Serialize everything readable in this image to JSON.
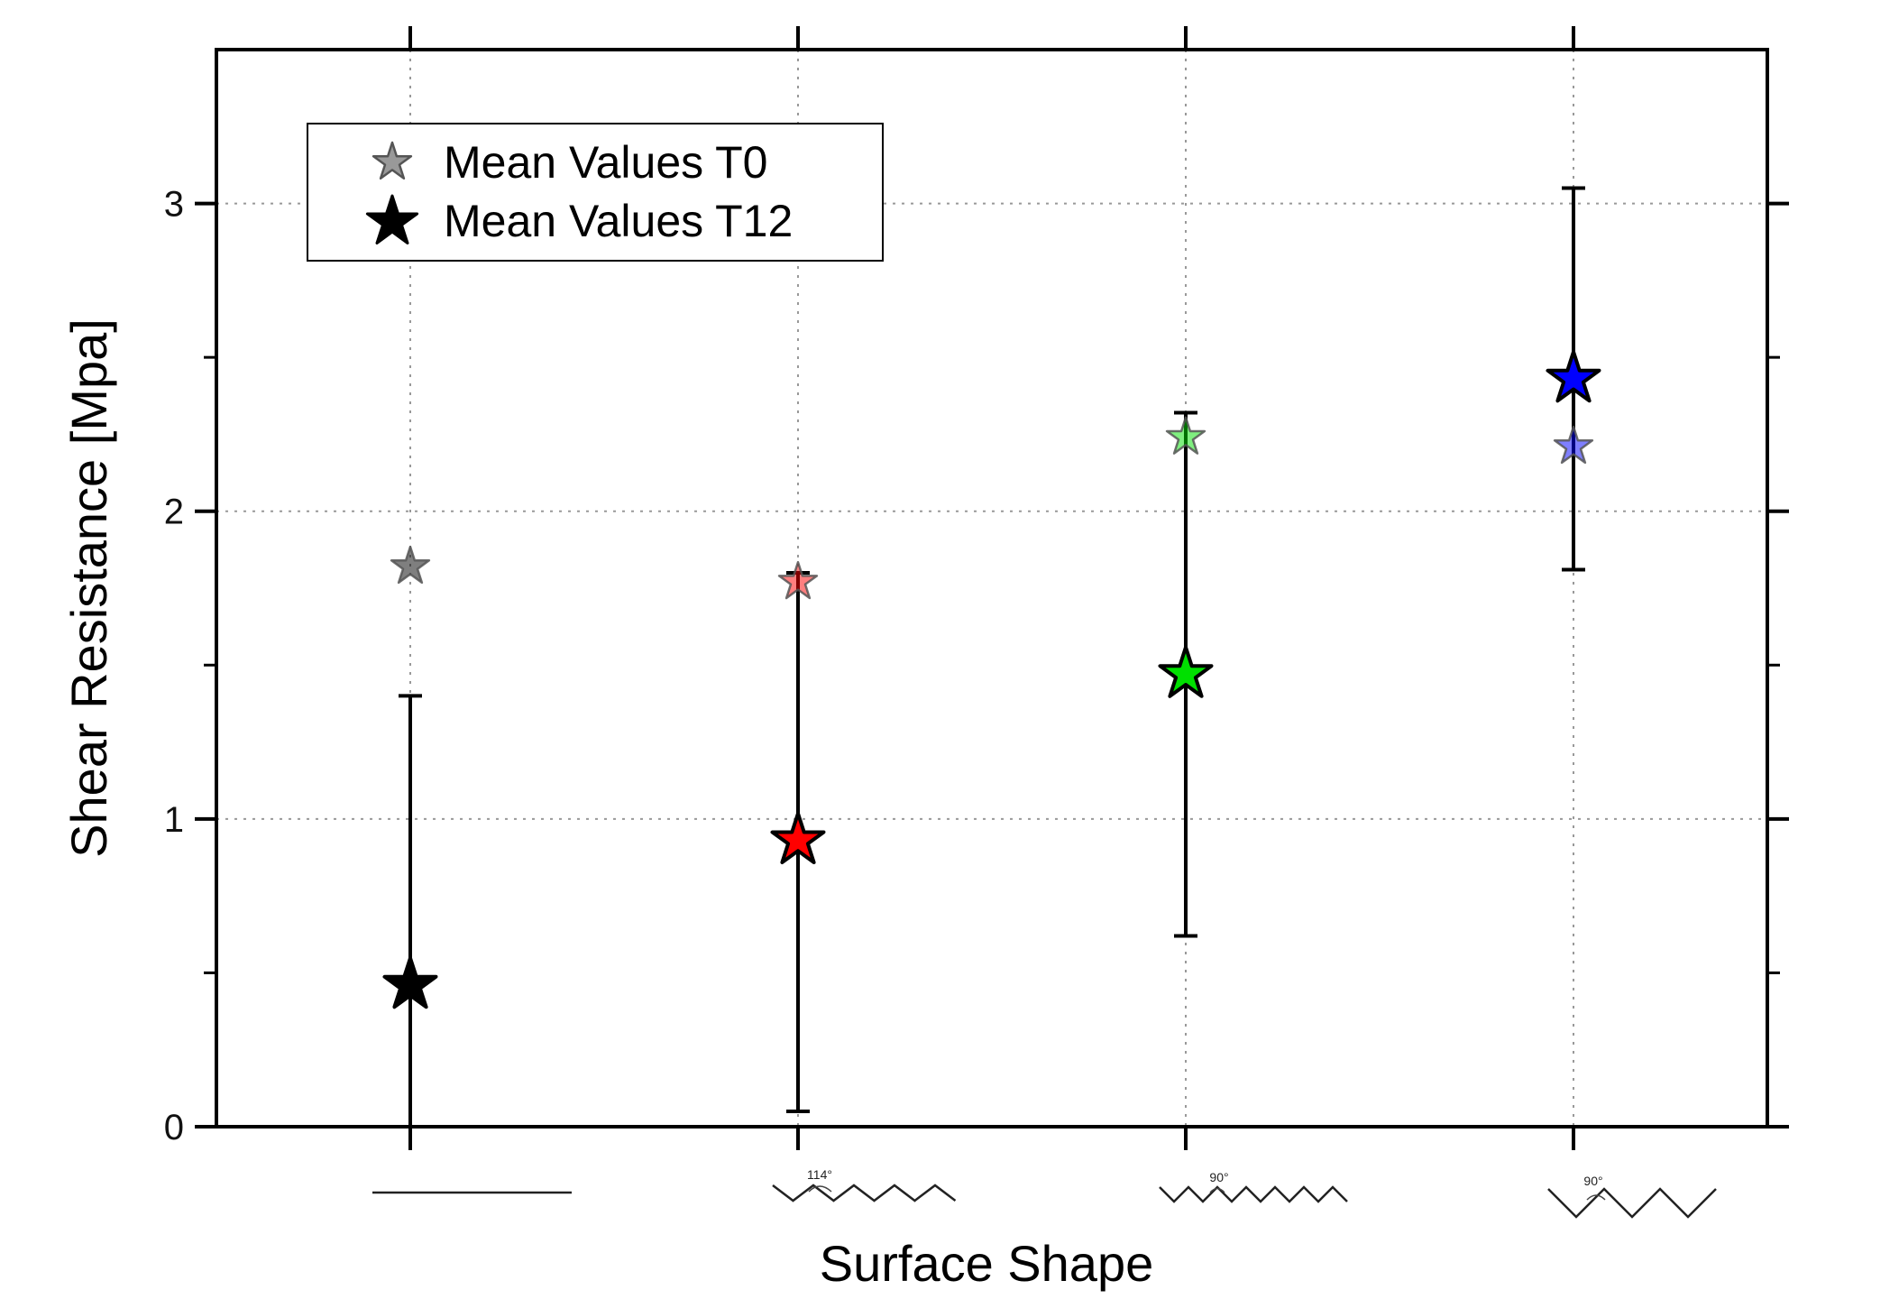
{
  "chart_data": {
    "type": "scatter",
    "title": "",
    "xlabel": "Surface Shape",
    "ylabel": "Shear Resistance [Mpa]",
    "ylim": [
      0,
      3.5
    ],
    "yticks": [
      "0",
      "1",
      "2",
      "3"
    ],
    "grid": true,
    "categories": [
      "flat",
      "zigzag 114°",
      "zigzag 90° fine",
      "zigzag 90° coarse"
    ],
    "category_labels": [
      "",
      "114°",
      "90°",
      "90°"
    ],
    "category_colors": [
      "#000000",
      "#ff0000",
      "#00e000",
      "#0000ff"
    ],
    "legend": {
      "placement": "top-left",
      "entries": [
        "Mean Values T0",
        "Mean Values T12"
      ]
    },
    "series": [
      {
        "name": "Mean Values T0",
        "values": [
          1.82,
          1.77,
          2.24,
          2.21
        ],
        "error_low": [
          null,
          0.05,
          0.62,
          1.81
        ],
        "error_high": [
          null,
          1.8,
          2.32,
          3.05
        ]
      },
      {
        "name": "Mean Values T12",
        "values": [
          0.46,
          0.93,
          1.47,
          2.43
        ],
        "error_low": [
          0.0,
          null,
          null,
          null
        ],
        "error_high": [
          1.4,
          null,
          null,
          null
        ]
      }
    ]
  }
}
